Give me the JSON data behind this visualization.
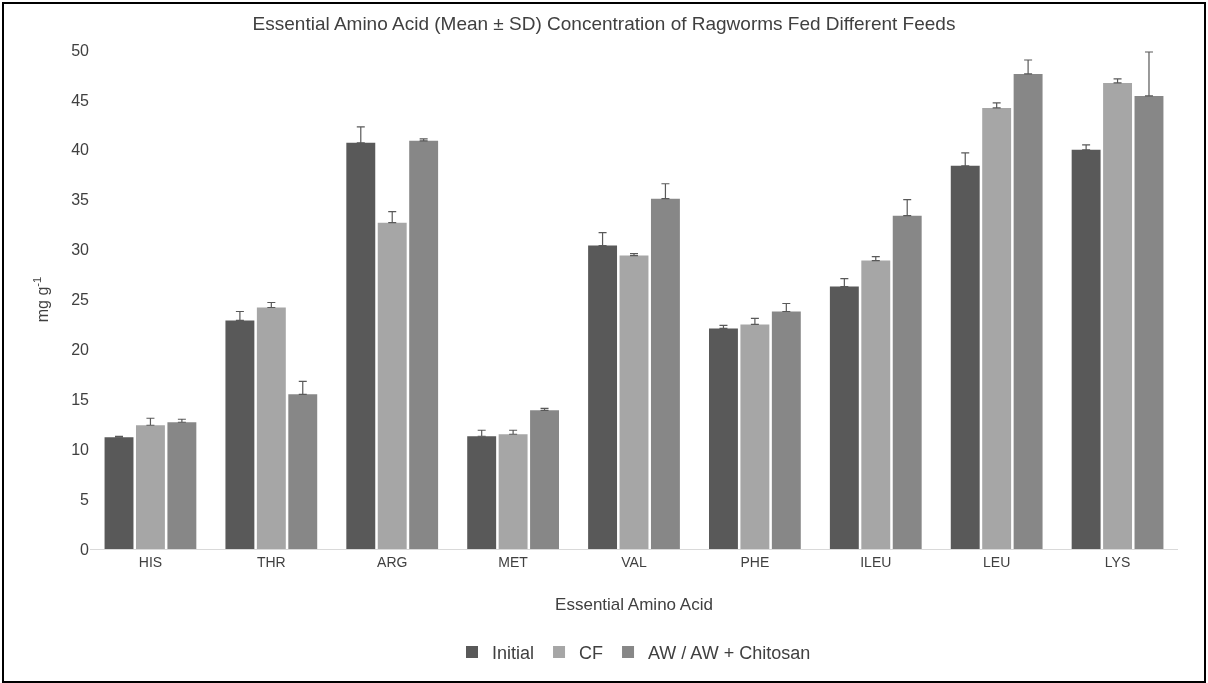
{
  "chart_data": {
    "type": "bar",
    "title": "Essential Amino Acid (Mean ± SD) Concentration of Ragworms Fed Different Feeds",
    "xlabel": "Essential Amino Acid",
    "ylabel": "mg g$^{-1}$",
    "categories": [
      "HIS",
      "THR",
      "ARG",
      "MET",
      "VAL",
      "PHE",
      "ILEU",
      "LEU",
      "LYS"
    ],
    "series": [
      {
        "name": "Initial",
        "color": "#595959",
        "values": [
          11.2,
          22.9,
          40.7,
          11.3,
          30.4,
          22.1,
          26.3,
          38.4,
          40.0
        ],
        "errors": [
          [
            11.2,
            11.3
          ],
          [
            22.9,
            23.8
          ],
          [
            40.7,
            42.3
          ],
          [
            11.3,
            11.9
          ],
          [
            30.4,
            31.7
          ],
          [
            22.1,
            22.4
          ],
          [
            26.3,
            27.1
          ],
          [
            38.4,
            39.7
          ],
          [
            40.0,
            40.5
          ]
        ]
      },
      {
        "name": "CF",
        "color": "#a6a6a6",
        "values": [
          12.4,
          24.2,
          32.7,
          11.5,
          29.4,
          22.5,
          28.9,
          44.2,
          46.7
        ],
        "errors": [
          [
            12.4,
            13.1
          ],
          [
            24.2,
            24.7
          ],
          [
            32.7,
            33.8
          ],
          [
            11.5,
            11.9
          ],
          [
            29.4,
            29.6
          ],
          [
            22.5,
            23.1
          ],
          [
            28.9,
            29.3
          ],
          [
            44.2,
            44.7
          ],
          [
            46.7,
            47.1
          ]
        ]
      },
      {
        "name": "AW / AW + Chitosan",
        "color": "#878787",
        "values": [
          12.7,
          15.5,
          40.9,
          13.9,
          35.1,
          23.8,
          33.4,
          47.6,
          45.4
        ],
        "errors": [
          [
            12.7,
            13.0
          ],
          [
            15.5,
            16.8
          ],
          [
            40.9,
            41.1
          ],
          [
            13.9,
            14.1
          ],
          [
            35.1,
            36.6
          ],
          [
            23.8,
            24.6
          ],
          [
            33.4,
            35.0
          ],
          [
            47.6,
            49.0
          ],
          [
            45.4,
            49.8
          ]
        ]
      }
    ],
    "ylim": [
      0,
      50
    ],
    "yticks": [
      0,
      5,
      10,
      15,
      20,
      25,
      30,
      35,
      40,
      45,
      50
    ],
    "grid": false,
    "legend": "bottom"
  }
}
